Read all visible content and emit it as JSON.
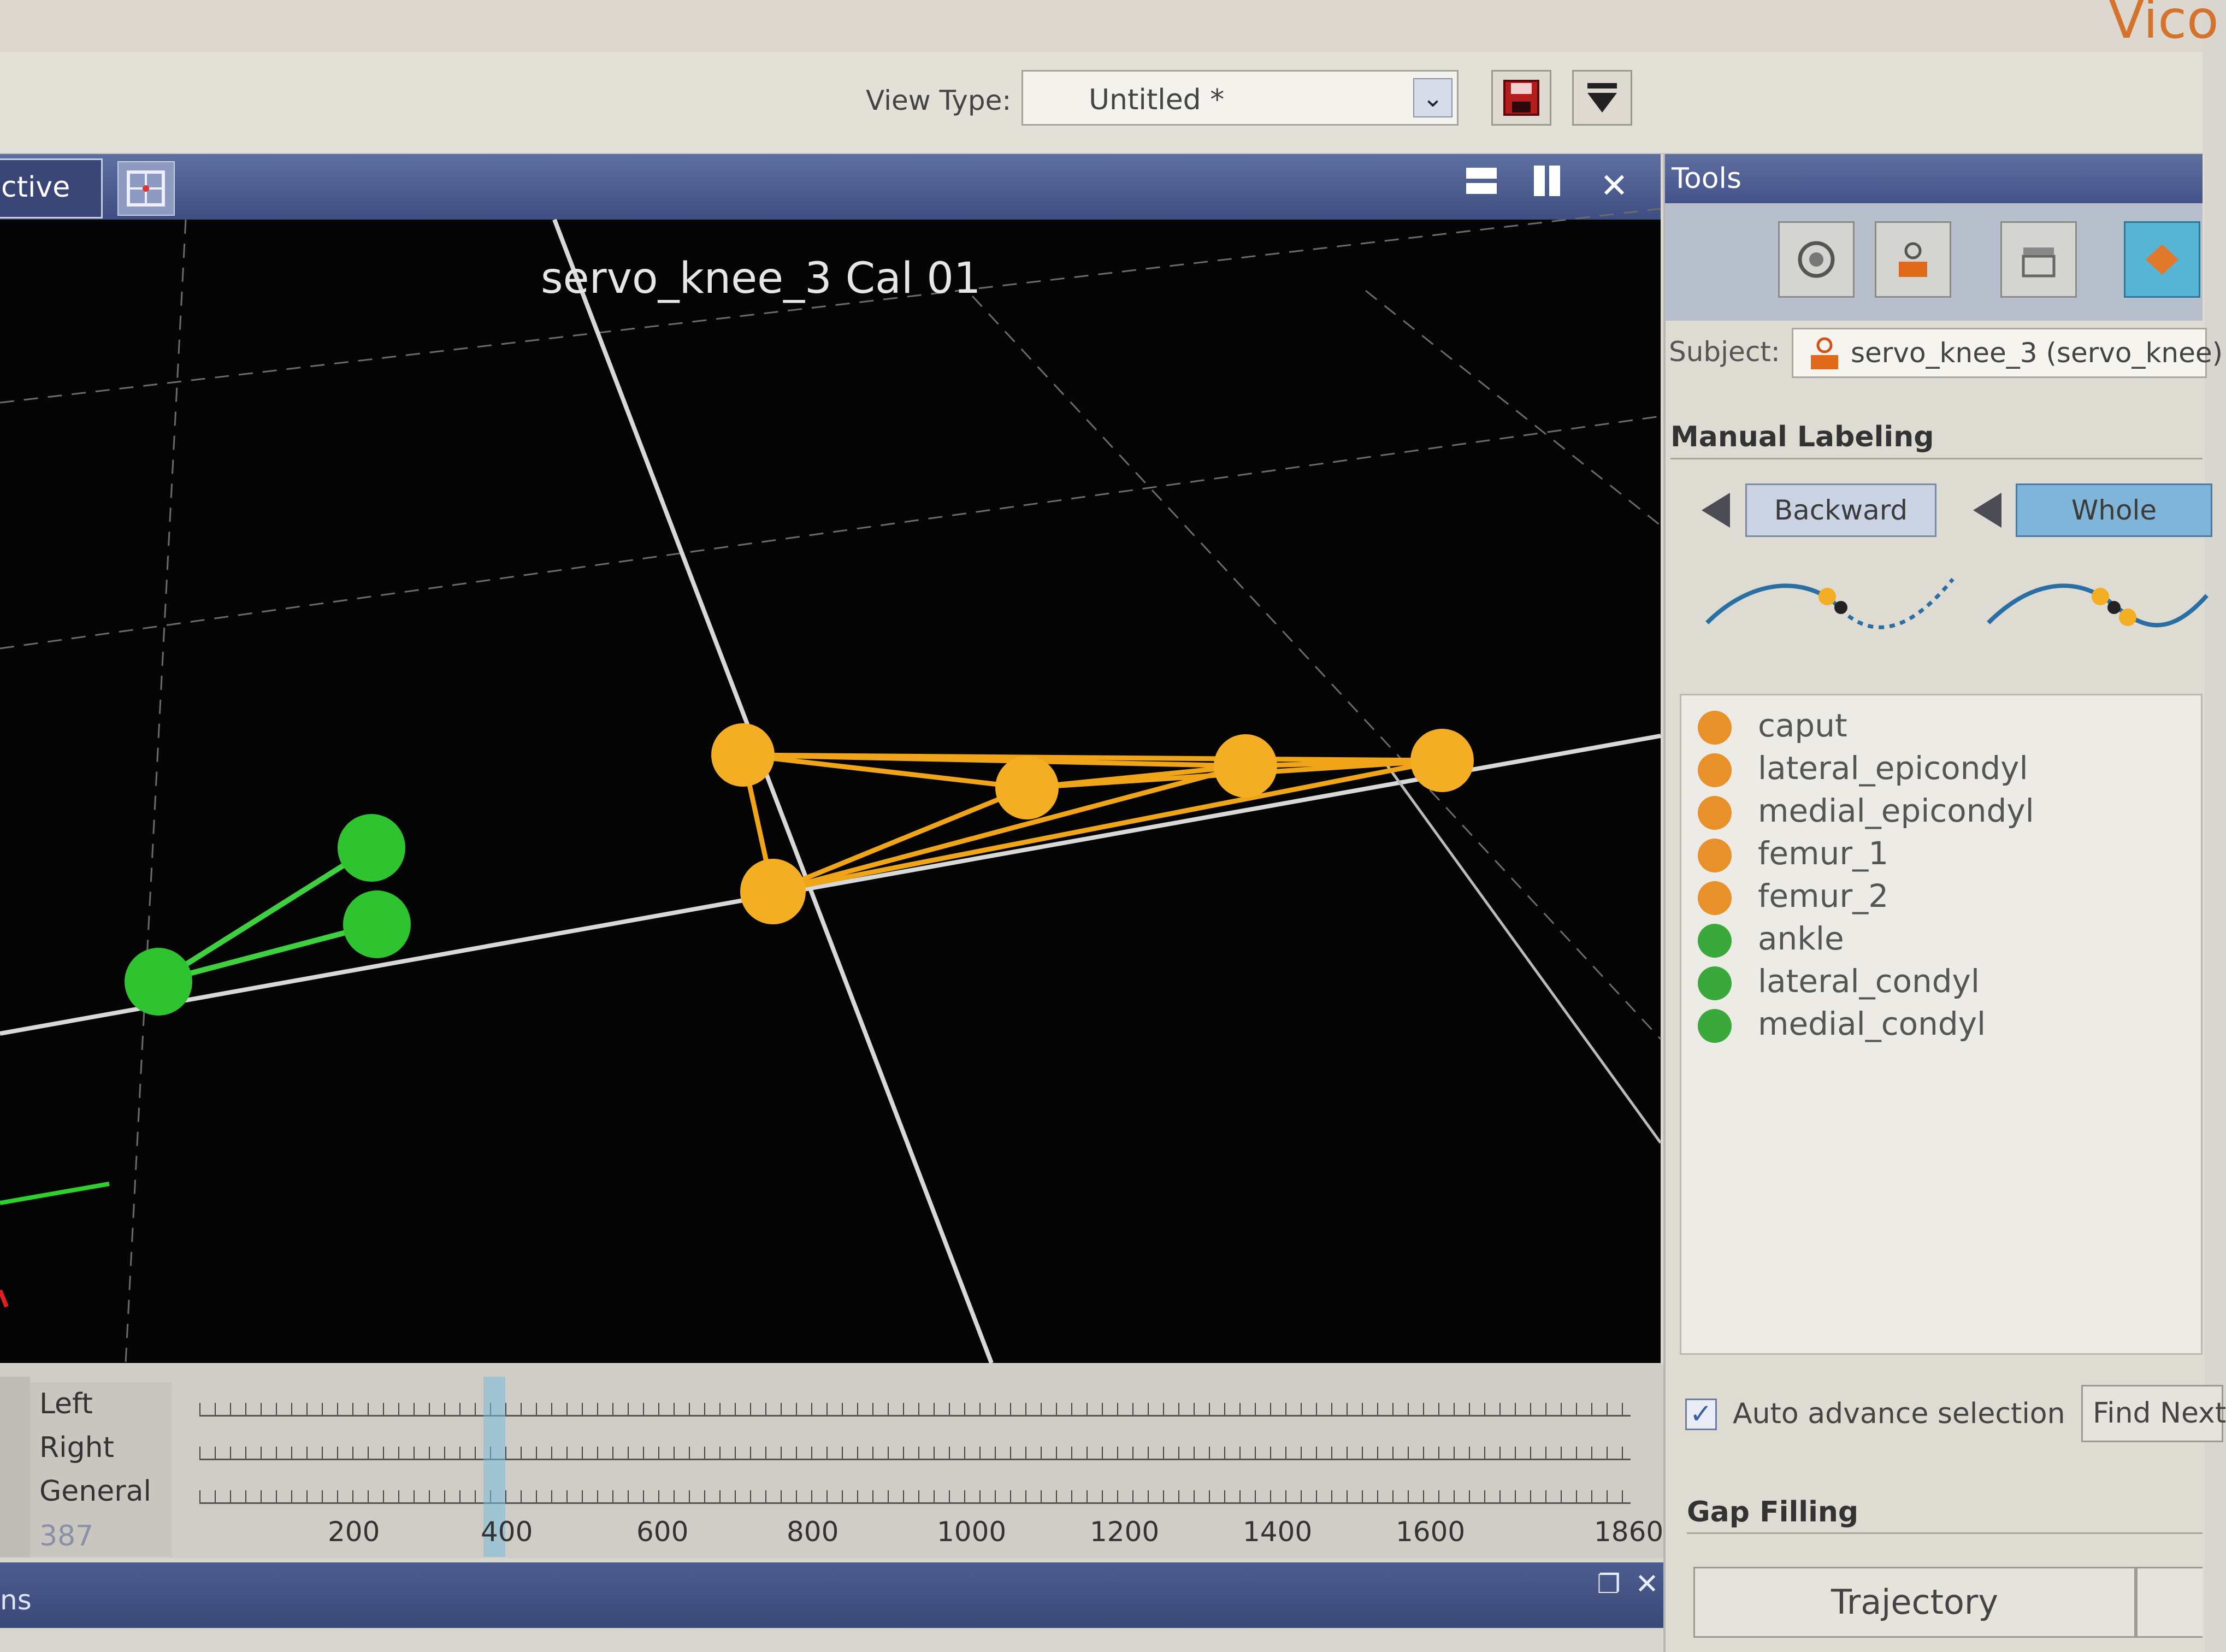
{
  "brand": "Vico",
  "toolbar": {
    "view_type_label": "View Type:",
    "view_type_value": "Untitled *"
  },
  "viewport": {
    "tab_label": "ctive",
    "title": "servo_knee_3 Cal 01"
  },
  "timeline": {
    "rows": [
      "Left",
      "Right",
      "General"
    ],
    "current_frame": "387",
    "scale": [
      "200",
      "400",
      "600",
      "800",
      "1000",
      "1200",
      "1400",
      "1600",
      "1860"
    ]
  },
  "bottom_panel": {
    "title": "ns"
  },
  "tools": {
    "header": "Tools",
    "subject_label": "Subject:",
    "subject_value": "servo_knee_3 (servo_knee)",
    "manual_labeling_title": "Manual Labeling",
    "backward_label": "Backward",
    "whole_label": "Whole",
    "markers": [
      {
        "name": "caput",
        "color": "#e8902a"
      },
      {
        "name": "lateral_epicondyl",
        "color": "#e8902a"
      },
      {
        "name": "medial_epicondyl",
        "color": "#e8902a"
      },
      {
        "name": "femur_1",
        "color": "#e8902a"
      },
      {
        "name": "femur_2",
        "color": "#e8902a"
      },
      {
        "name": "ankle",
        "color": "#3aa83a"
      },
      {
        "name": "lateral_condyl",
        "color": "#3aa83a"
      },
      {
        "name": "medial_condyl",
        "color": "#3aa83a"
      }
    ],
    "auto_advance_label": "Auto advance selection",
    "auto_advance_checked": "✓",
    "find_next_label": "Find Next",
    "gap_filling_title": "Gap Filling",
    "trajectory_label": "Trajectory"
  }
}
